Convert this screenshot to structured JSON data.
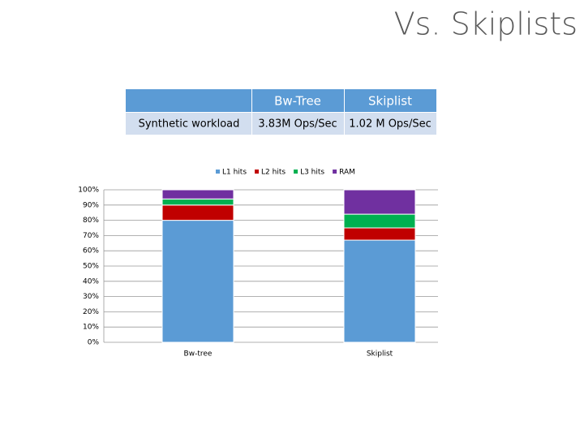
{
  "title": "Vs. Skiplists",
  "table": {
    "header": [
      "Bw-Tree",
      "Skiplist"
    ],
    "rows": [
      [
        "Synthetic workload",
        "3.83M Ops/Sec",
        "1.02 M Ops/Sec"
      ]
    ]
  },
  "chart_data": {
    "type": "bar",
    "stacked": true,
    "categories": [
      "Bw-tree",
      "Skiplist"
    ],
    "series": [
      {
        "name": "L1 hits",
        "color": "#5b9bd5",
        "values": [
          80,
          67
        ]
      },
      {
        "name": "L2 hits",
        "color": "#c00000",
        "values": [
          10,
          8
        ]
      },
      {
        "name": "L3 hits",
        "color": "#00b050",
        "values": [
          4,
          9
        ]
      },
      {
        "name": "RAM",
        "color": "#7030a0",
        "values": [
          6,
          16
        ]
      }
    ],
    "ylim": [
      0,
      100
    ],
    "yticks": [
      {
        "value": 0,
        "label": "0%"
      },
      {
        "value": 10,
        "label": "10%"
      },
      {
        "value": 20,
        "label": "20%"
      },
      {
        "value": 30,
        "label": "30%"
      },
      {
        "value": 40,
        "label": "40%"
      },
      {
        "value": 50,
        "label": "50%"
      },
      {
        "value": 60,
        "label": "60%"
      },
      {
        "value": 70,
        "label": "70%"
      },
      {
        "value": 80,
        "label": "80%"
      },
      {
        "value": 90,
        "label": "90%"
      },
      {
        "value": 100,
        "label": "100%"
      }
    ],
    "grid": true,
    "legend": "top"
  }
}
